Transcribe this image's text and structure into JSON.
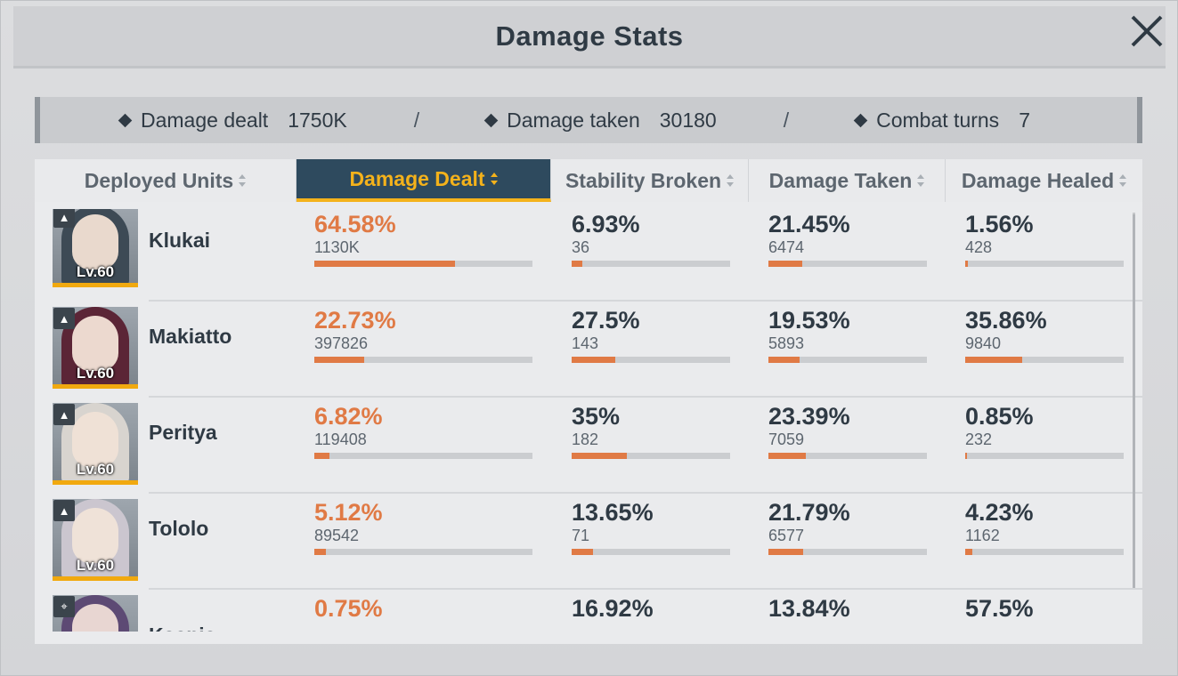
{
  "title": "Damage Stats",
  "summary": {
    "damage_dealt_label": "Damage dealt",
    "damage_dealt_value": "1750K",
    "damage_taken_label": "Damage taken",
    "damage_taken_value": "30180",
    "combat_turns_label": "Combat turns",
    "combat_turns_value": "7",
    "separator": "/"
  },
  "columns": [
    {
      "label": "Deployed Units",
      "active": false
    },
    {
      "label": "Damage Dealt",
      "active": true
    },
    {
      "label": "Stability Broken",
      "active": false
    },
    {
      "label": "Damage Taken",
      "active": false
    },
    {
      "label": "Damage Healed",
      "active": false
    }
  ],
  "units": [
    {
      "name": "Klukai",
      "level": "Lv.60",
      "role_icon": "support-role-icon",
      "damage_dealt": {
        "pct": "64.58%",
        "value": "1130K",
        "fraction": 0.6458
      },
      "stability_broken": {
        "pct": "6.93%",
        "value": "36",
        "fraction": 0.0693
      },
      "damage_taken": {
        "pct": "21.45%",
        "value": "6474",
        "fraction": 0.2145
      },
      "damage_healed": {
        "pct": "1.56%",
        "value": "428",
        "fraction": 0.0156
      }
    },
    {
      "name": "Makiatto",
      "level": "Lv.60",
      "role_icon": "support-role-icon",
      "damage_dealt": {
        "pct": "22.73%",
        "value": "397826",
        "fraction": 0.2273
      },
      "stability_broken": {
        "pct": "27.5%",
        "value": "143",
        "fraction": 0.275
      },
      "damage_taken": {
        "pct": "19.53%",
        "value": "5893",
        "fraction": 0.1953
      },
      "damage_healed": {
        "pct": "35.86%",
        "value": "9840",
        "fraction": 0.3586
      }
    },
    {
      "name": "Peritya",
      "level": "Lv.60",
      "role_icon": "support-role-icon",
      "damage_dealt": {
        "pct": "6.82%",
        "value": "119408",
        "fraction": 0.0682
      },
      "stability_broken": {
        "pct": "35%",
        "value": "182",
        "fraction": 0.35
      },
      "damage_taken": {
        "pct": "23.39%",
        "value": "7059",
        "fraction": 0.2339
      },
      "damage_healed": {
        "pct": "0.85%",
        "value": "232",
        "fraction": 0.0085
      }
    },
    {
      "name": "Tololo",
      "level": "Lv.60",
      "role_icon": "support-role-icon",
      "damage_dealt": {
        "pct": "5.12%",
        "value": "89542",
        "fraction": 0.0512
      },
      "stability_broken": {
        "pct": "13.65%",
        "value": "71",
        "fraction": 0.1365
      },
      "damage_taken": {
        "pct": "21.79%",
        "value": "6577",
        "fraction": 0.2179
      },
      "damage_healed": {
        "pct": "4.23%",
        "value": "1162",
        "fraction": 0.0423
      }
    },
    {
      "name": "Ksenia",
      "level": "",
      "role_icon": "crosshair-role-icon",
      "damage_dealt": {
        "pct": "0.75%",
        "value": "",
        "fraction": 0.0075
      },
      "stability_broken": {
        "pct": "16.92%",
        "value": "",
        "fraction": 0.1692
      },
      "damage_taken": {
        "pct": "13.84%",
        "value": "",
        "fraction": 0.1384
      },
      "damage_healed": {
        "pct": "57.5%",
        "value": "",
        "fraction": 0.575
      }
    }
  ],
  "colors": {
    "accent_orange": "#e07a45",
    "active_header_bg": "#2e4a5e",
    "active_header_text": "#f4b21b",
    "text_dark": "#2f3a44"
  }
}
